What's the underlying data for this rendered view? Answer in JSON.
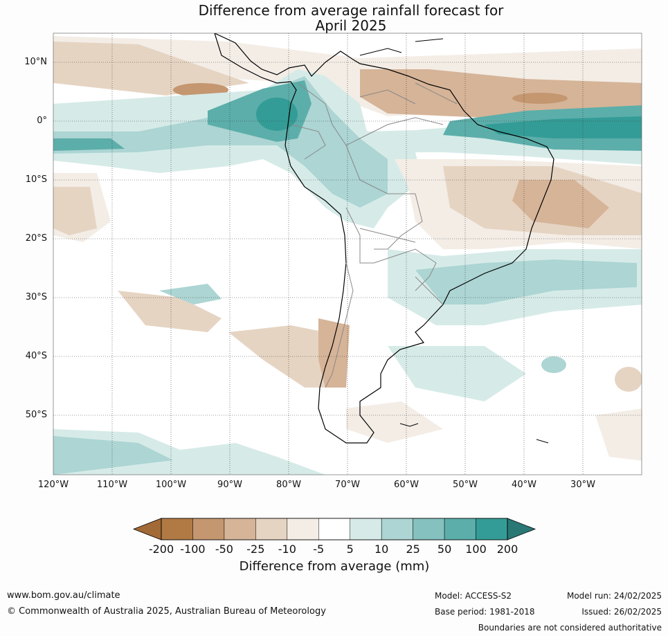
{
  "title_line1": "Difference from average rainfall forecast for",
  "title_line2": "April 2025",
  "lat_labels": [
    "10°N",
    "0°",
    "10°S",
    "20°S",
    "30°S",
    "40°S",
    "50°S"
  ],
  "lon_labels": [
    "120°W",
    "110°W",
    "100°W",
    "90°W",
    "80°W",
    "70°W",
    "60°W",
    "50°W",
    "40°W",
    "30°W"
  ],
  "legend": {
    "title": "Difference from average (mm)",
    "labels": [
      "-200",
      "-100",
      "-50",
      "-25",
      "-10",
      "-5",
      "5",
      "10",
      "25",
      "50",
      "100",
      "200"
    ],
    "colors": [
      "#a26a36",
      "#b17a44",
      "#c49770",
      "#d6b498",
      "#e6d4c3",
      "#f3ede6",
      "#ffffff",
      "#d6ebe8",
      "#acd5d3",
      "#84c1bf",
      "#5caeaa",
      "#349c96",
      "#2a7876"
    ]
  },
  "footer": {
    "url": "www.bom.gov.au/climate",
    "copyright": "© Commonwealth of Australia 2025, Australian Bureau of Meteorology",
    "model": "Model: ACCESS-S2",
    "base_period": "Base period: 1981-2018",
    "model_run": "Model run: 24/02/2025",
    "issued": "Issued: 26/02/2025",
    "boundaries": "Boundaries are not considered authoritative"
  }
}
